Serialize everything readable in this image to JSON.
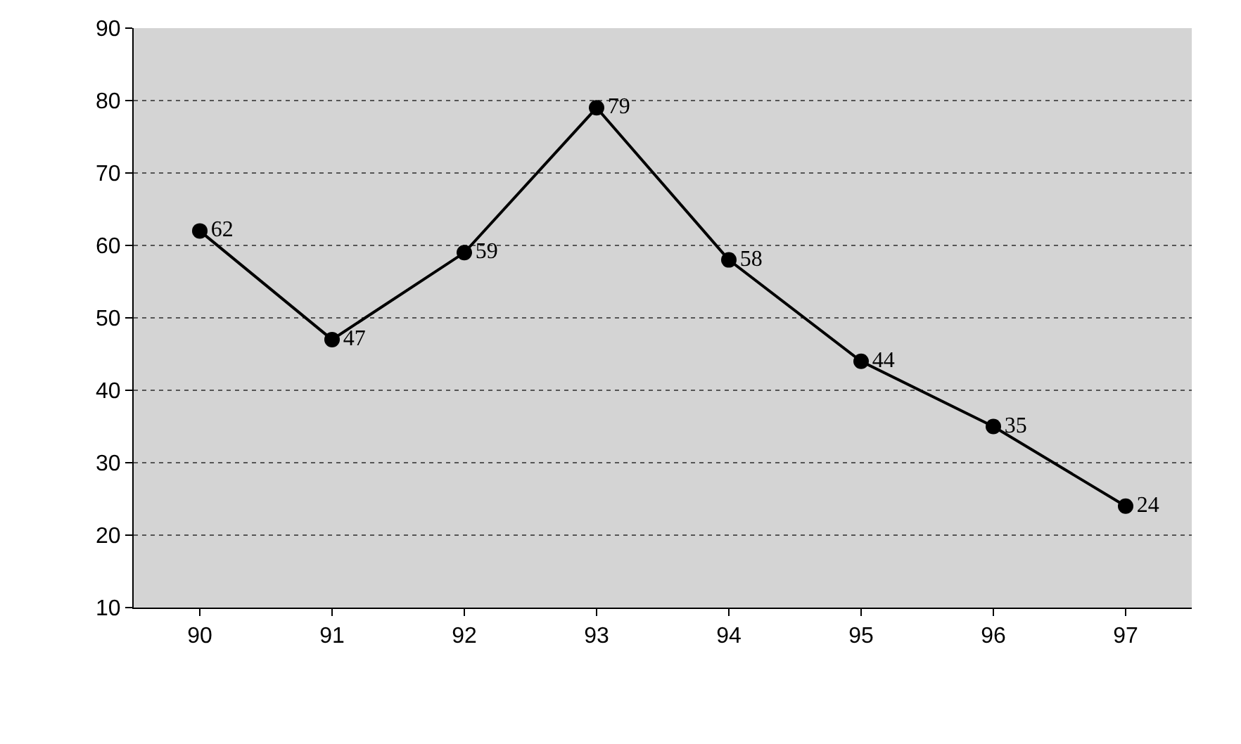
{
  "chart_data": {
    "type": "line",
    "categories": [
      "90",
      "91",
      "92",
      "93",
      "94",
      "95",
      "96",
      "97"
    ],
    "series": [
      {
        "color": "#000000",
        "values": [
          62,
          47,
          59,
          79,
          58,
          44,
          35,
          24
        ]
      }
    ],
    "ylim": [
      10,
      90
    ],
    "yticks": [
      10,
      20,
      30,
      40,
      50,
      60,
      70,
      80,
      90
    ],
    "grid": "y",
    "marker": "circle",
    "line_style": "solid",
    "data_labels": true
  }
}
